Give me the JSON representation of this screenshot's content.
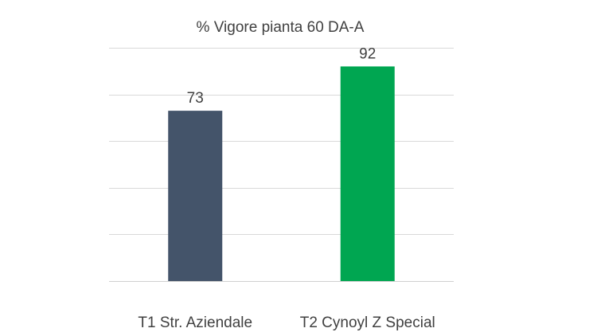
{
  "chart_data": {
    "type": "bar",
    "title": "% Vigore pianta 60 DA-A",
    "categories": [
      "T1 Str. Aziendale",
      "T2 Cynoyl Z Special"
    ],
    "values": [
      73,
      92
    ],
    "bar_colors": [
      "#44546a",
      "#00a651"
    ],
    "ylim": [
      0,
      100
    ],
    "ytick_step": 20,
    "grid": true,
    "show_y_axis_labels": false,
    "xlabel": "",
    "ylabel": ""
  }
}
